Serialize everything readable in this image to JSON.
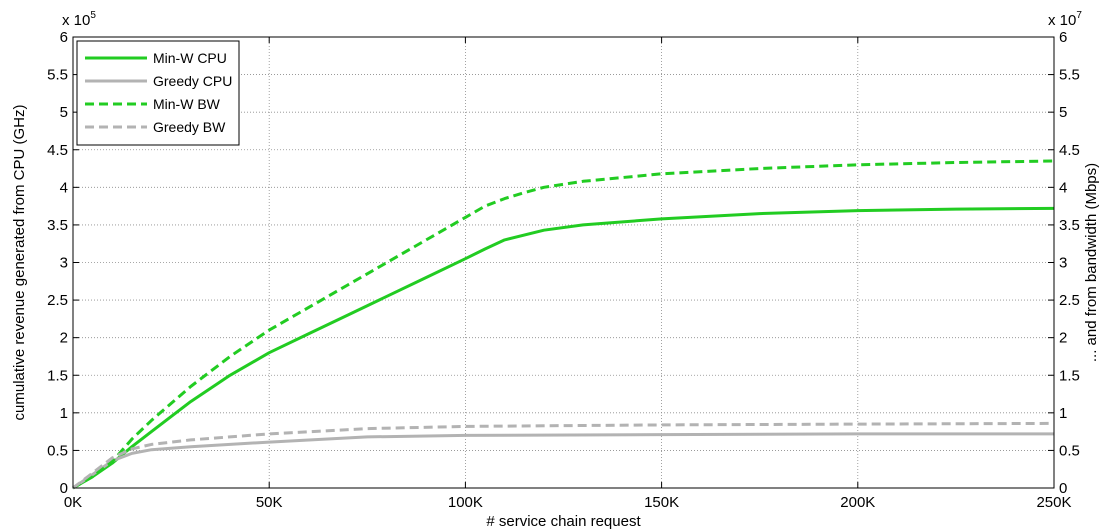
{
  "chart_data": {
    "type": "line",
    "xlabel": "# service chain request",
    "ylabel": "cumulative revenue generated from CPU (GHz)",
    "y2label": "... and from bandwidth (Mbps)",
    "xlim": [
      0,
      250000
    ],
    "ylim": [
      0,
      600000
    ],
    "y2lim": [
      0,
      60000000
    ],
    "x_ticks": [
      0,
      50000,
      100000,
      150000,
      200000,
      250000
    ],
    "x_tick_labels": [
      "0K",
      "50K",
      "100K",
      "150K",
      "200K",
      "250K"
    ],
    "y_ticks": [
      0,
      50000,
      100000,
      150000,
      200000,
      250000,
      300000,
      350000,
      400000,
      450000,
      500000,
      550000,
      600000
    ],
    "y_tick_labels": [
      "0",
      "0.5",
      "1",
      "1.5",
      "2",
      "2.5",
      "3",
      "3.5",
      "4",
      "4.5",
      "5",
      "5.5",
      "6"
    ],
    "y_multiplier": "x 10",
    "y_multiplier_exp": "5",
    "y2_ticks": [
      0,
      5000000,
      10000000,
      15000000,
      20000000,
      25000000,
      30000000,
      35000000,
      40000000,
      45000000,
      50000000,
      55000000,
      60000000
    ],
    "y2_tick_labels": [
      "0",
      "0.5",
      "1",
      "1.5",
      "2",
      "2.5",
      "3",
      "3.5",
      "4",
      "4.5",
      "5",
      "5.5",
      "6"
    ],
    "y2_multiplier": "x 10",
    "y2_multiplier_exp": "7",
    "grid": true,
    "legend_position": "top-left",
    "series": [
      {
        "name": "Min-W CPU",
        "color": "#22cc22",
        "dash": "solid",
        "axis": "left",
        "x": [
          0,
          5000,
          10000,
          15000,
          20000,
          30000,
          40000,
          50000,
          60000,
          70000,
          80000,
          90000,
          100000,
          105000,
          110000,
          120000,
          130000,
          150000,
          175000,
          200000,
          225000,
          250000
        ],
        "y": [
          0,
          15000,
          33000,
          55000,
          75000,
          115000,
          150000,
          180000,
          205000,
          230000,
          255000,
          280000,
          305000,
          318000,
          330000,
          343000,
          350000,
          358000,
          365000,
          369000,
          371000,
          372000
        ]
      },
      {
        "name": "Greedy CPU",
        "color": "#b3b3b3",
        "dash": "solid",
        "axis": "left",
        "x": [
          0,
          5000,
          10000,
          15000,
          20000,
          30000,
          50000,
          75000,
          100000,
          150000,
          200000,
          250000
        ],
        "y": [
          0,
          18000,
          36000,
          46000,
          51000,
          55000,
          61000,
          68000,
          70000,
          71000,
          72000,
          72000
        ]
      },
      {
        "name": "Min-W BW",
        "color": "#22cc22",
        "dash": "dashed",
        "axis": "right",
        "x": [
          0,
          5000,
          10000,
          15000,
          20000,
          30000,
          40000,
          50000,
          60000,
          70000,
          80000,
          90000,
          100000,
          105000,
          110000,
          115000,
          120000,
          130000,
          150000,
          175000,
          200000,
          225000,
          250000
        ],
        "y": [
          0,
          1500000,
          3500000,
          6500000,
          9000000,
          13500000,
          17500000,
          21000000,
          24000000,
          27000000,
          30000000,
          33000000,
          36000000,
          37500000,
          38500000,
          39300000,
          40000000,
          40800000,
          41800000,
          42500000,
          43000000,
          43300000,
          43500000
        ]
      },
      {
        "name": "Greedy BW",
        "color": "#b3b3b3",
        "dash": "dashed",
        "axis": "right",
        "x": [
          0,
          5000,
          10000,
          15000,
          20000,
          30000,
          50000,
          75000,
          100000,
          150000,
          200000,
          250000
        ],
        "y": [
          0,
          2000000,
          4000000,
          5200000,
          5800000,
          6400000,
          7200000,
          7900000,
          8200000,
          8400000,
          8500000,
          8600000
        ]
      }
    ]
  }
}
